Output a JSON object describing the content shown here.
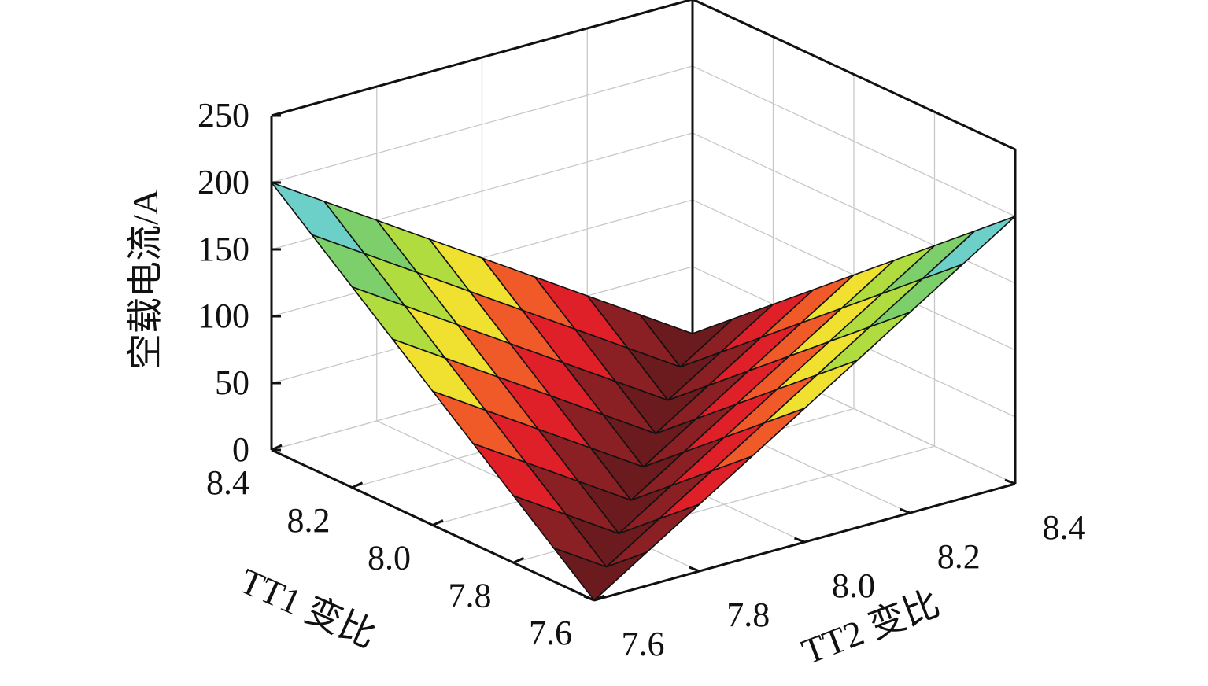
{
  "chart_data": {
    "type": "surface",
    "title": "",
    "xlabel": "TT1 变比",
    "ylabel": "TT2 变比",
    "zlabel": "空载电流/A",
    "x_ticks": [
      "7.6",
      "7.8",
      "8.0",
      "8.2",
      "8.4"
    ],
    "y_ticks": [
      "7.6",
      "7.8",
      "8.0",
      "8.2",
      "8.4"
    ],
    "z_ticks": [
      "0",
      "50",
      "100",
      "150",
      "200",
      "250"
    ],
    "xlim": [
      7.6,
      8.4
    ],
    "ylim": [
      7.6,
      8.4
    ],
    "zlim": [
      0,
      250
    ],
    "x": [
      7.6,
      7.7,
      7.8,
      7.9,
      8.0,
      8.1,
      8.2,
      8.3,
      8.4
    ],
    "y": [
      7.6,
      7.7,
      7.8,
      7.9,
      8.0,
      8.1,
      8.2,
      8.3,
      8.4
    ],
    "z": [
      [
        0,
        25,
        50,
        75,
        100,
        125,
        150,
        175,
        200
      ],
      [
        25,
        0,
        25,
        50,
        75,
        100,
        125,
        150,
        175
      ],
      [
        50,
        25,
        0,
        25,
        50,
        75,
        100,
        125,
        150
      ],
      [
        75,
        50,
        25,
        0,
        25,
        50,
        75,
        100,
        125
      ],
      [
        100,
        75,
        50,
        25,
        0,
        25,
        50,
        75,
        100
      ],
      [
        125,
        100,
        75,
        50,
        25,
        0,
        25,
        50,
        75
      ],
      [
        150,
        125,
        100,
        75,
        50,
        25,
        0,
        25,
        50
      ],
      [
        175,
        150,
        125,
        100,
        75,
        50,
        25,
        0,
        25
      ],
      [
        200,
        175,
        150,
        125,
        100,
        75,
        50,
        25,
        0
      ]
    ],
    "grid": true,
    "colormap": [
      "#6b1a1e",
      "#8a1f24",
      "#e02028",
      "#f05a28",
      "#f0e030",
      "#b0dc40",
      "#7ccf6a",
      "#6cd0c8",
      "#3a78d0",
      "#2b4aa8"
    ]
  }
}
